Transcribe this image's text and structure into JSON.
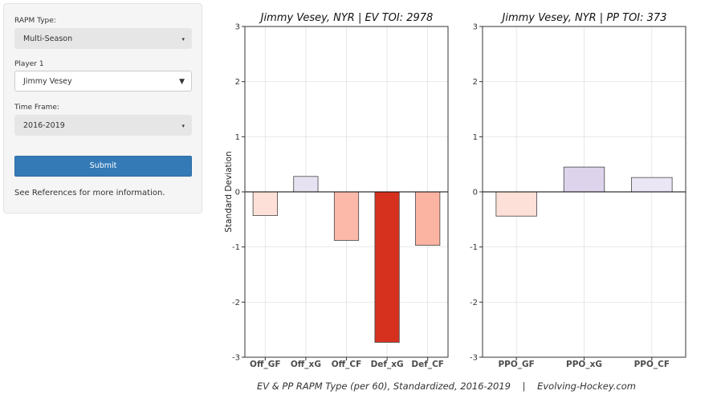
{
  "sidebar": {
    "rapm_type": {
      "label": "RAPM Type:",
      "value": "Multi-Season"
    },
    "player": {
      "label": "Player 1",
      "value": "Jimmy Vesey"
    },
    "time_frame": {
      "label": "Time Frame:",
      "value": "2016-2019"
    },
    "submit_label": "Submit",
    "note": "See References for more information."
  },
  "caption": "EV & PP RAPM Type (per 60), Standardized, 2016-2019    |    Evolving-Hockey.com",
  "chart_data": [
    {
      "type": "bar",
      "title": "Jimmy Vesey, NYR  |  EV TOI: 2978",
      "ylabel": "Standard Deviation",
      "ylim": [
        -3,
        3
      ],
      "yticks": [
        3,
        2,
        1,
        0,
        -1,
        -2,
        -3
      ],
      "grid": true,
      "categories": [
        "Off_GF",
        "Off_xG",
        "Off_CF",
        "Def_xG",
        "Def_CF"
      ],
      "values": [
        -0.43,
        0.28,
        -0.88,
        -2.73,
        -0.97
      ],
      "colors": [
        "#fde0d7",
        "#e7e2f1",
        "#fcb9a9",
        "#d6311f",
        "#fcb4a2"
      ]
    },
    {
      "type": "bar",
      "title": "Jimmy Vesey, NYR  |  PP TOI: 373",
      "ylabel": "",
      "ylim": [
        -3,
        3
      ],
      "yticks": [
        3,
        2,
        1,
        0,
        -1,
        -2,
        -3
      ],
      "grid": true,
      "categories": [
        "PPO_GF",
        "PPO_xG",
        "PPO_CF"
      ],
      "values": [
        -0.44,
        0.45,
        0.26
      ],
      "colors": [
        "#fde0d7",
        "#ddd4ec",
        "#ebe6f4"
      ]
    }
  ]
}
